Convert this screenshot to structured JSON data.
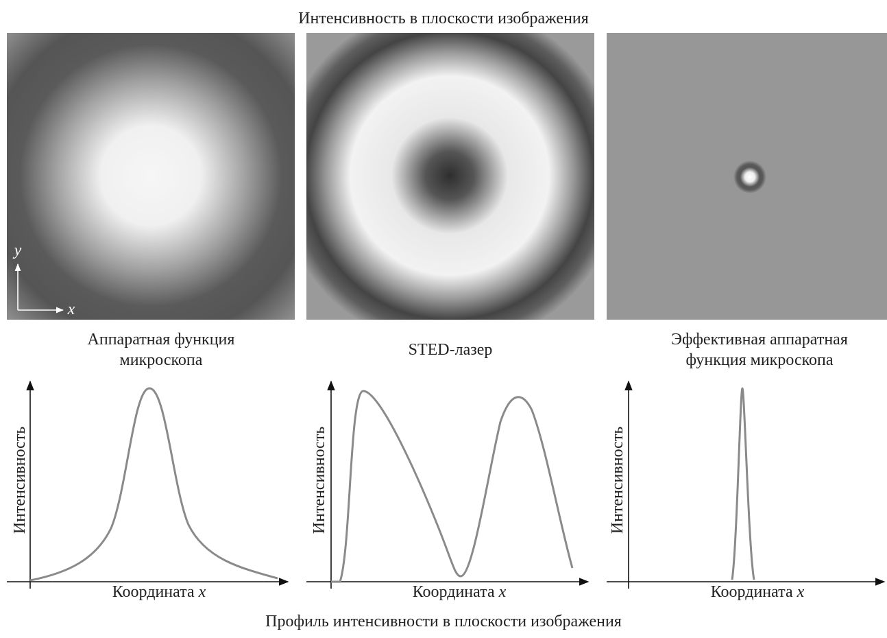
{
  "header": {
    "title": "Интенсивность в плоскости изображения"
  },
  "image_axes": {
    "y": "y",
    "x": "x"
  },
  "panels": [
    {
      "caption": [
        "Аппаратная функция",
        "микроскопа"
      ],
      "y_axis_label": "Интенсивность",
      "x_axis_label": {
        "text": "Координата",
        "variable": "x"
      }
    },
    {
      "caption": [
        "STED-лазер"
      ],
      "y_axis_label": "Интенсивность",
      "x_axis_label": {
        "text": "Координата",
        "variable": "x"
      }
    },
    {
      "caption": [
        "Эффективная аппаратная",
        "функция микроскопа"
      ],
      "y_axis_label": "Интенсивность",
      "x_axis_label": {
        "text": "Координата",
        "variable": "x"
      }
    }
  ],
  "footer": {
    "title": "Профиль интенсивности в плоскости изображения"
  }
}
